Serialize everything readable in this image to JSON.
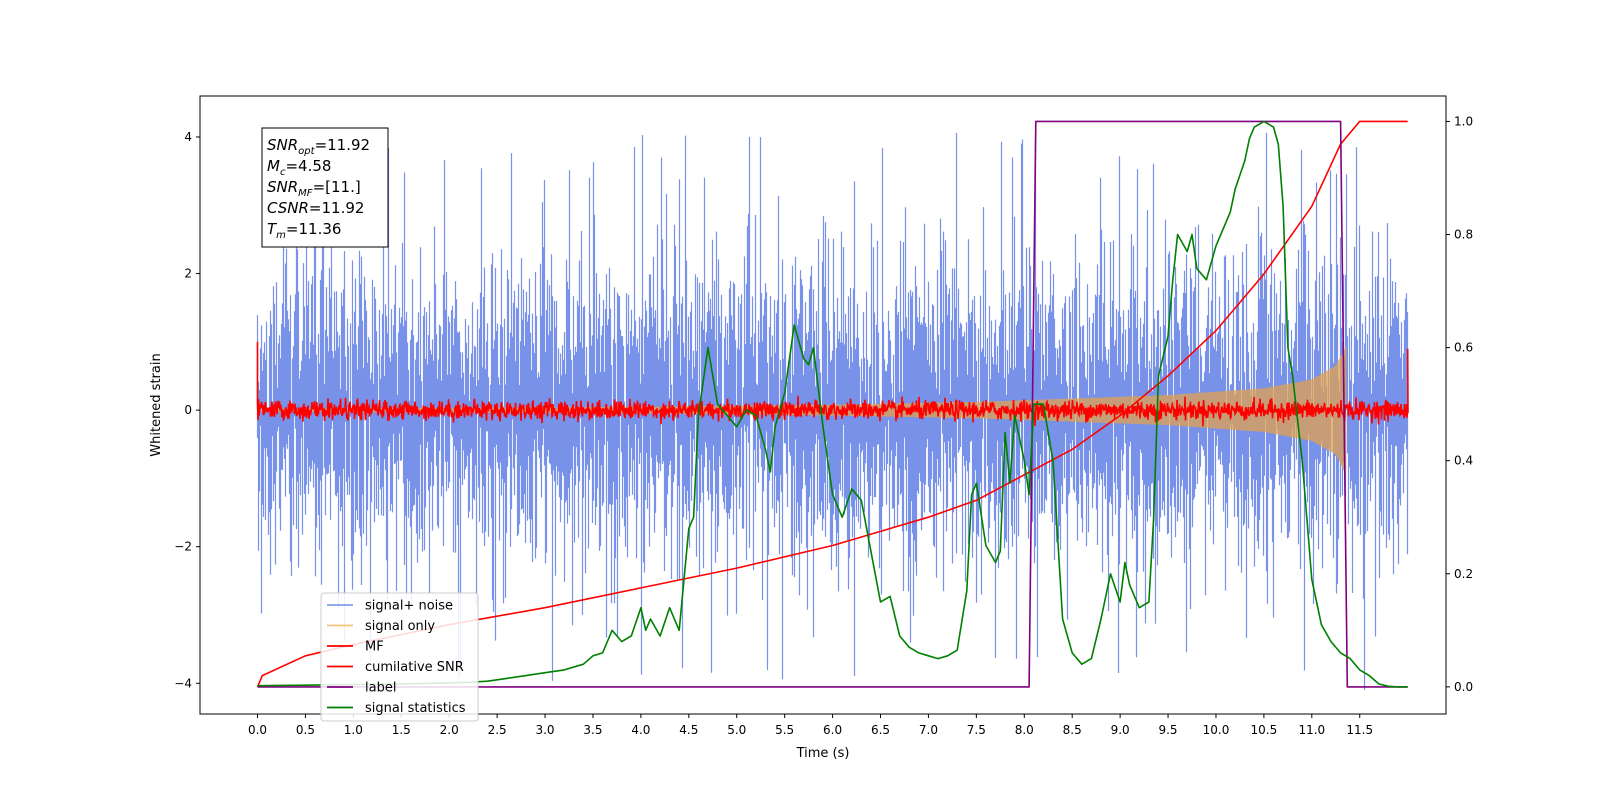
{
  "chart_data": {
    "type": "line",
    "title": "",
    "xlabel": "Time (s)",
    "ylabel": "Whitened strain",
    "xlim": [
      -0.6,
      12.4
    ],
    "ylim": [
      -4.45,
      4.6
    ],
    "y2lim": [
      -0.048,
      1.045
    ],
    "x_ticks": [
      "0.0",
      "0.5",
      "1.0",
      "1.5",
      "2.0",
      "2.5",
      "3.0",
      "3.5",
      "4.0",
      "4.5",
      "5.0",
      "5.5",
      "6.0",
      "6.5",
      "7.0",
      "7.5",
      "8.0",
      "8.5",
      "9.0",
      "9.5",
      "10.0",
      "10.5",
      "11.0",
      "11.5"
    ],
    "y_ticks": [
      "−4",
      "−2",
      "0",
      "2",
      "4"
    ],
    "y2_ticks": [
      "0.0",
      "0.2",
      "0.4",
      "0.6",
      "0.8",
      "1.0"
    ],
    "grid": false,
    "legend_position": "lower-left",
    "annotation": {
      "lines": [
        {
          "base": "SNR",
          "sub": "opt",
          "value": "=11.92"
        },
        {
          "base": "M",
          "sub": "c",
          "value": "=4.58"
        },
        {
          "base": "SNR",
          "sub": "MF",
          "value": "=[11.]"
        },
        {
          "base": "CSNR",
          "sub": "",
          "value": "=11.92"
        },
        {
          "base": "T",
          "sub": "m",
          "value": "=11.36"
        }
      ]
    },
    "series": [
      {
        "name": "signal+ noise",
        "color": "#7792e8",
        "axis": "left",
        "t_range": [
          0,
          12.0
        ],
        "noise_sigma": 1.0,
        "peak_abs": 4.1
      },
      {
        "name": "signal only",
        "color": "#f5c16c",
        "axis": "left",
        "t_range": [
          0,
          11.36
        ],
        "envelope_t": [
          0,
          4.0,
          6.0,
          7.5,
          8.5,
          9.5,
          10.5,
          11.0,
          11.25,
          11.36
        ],
        "envelope_amp": [
          0.02,
          0.05,
          0.08,
          0.12,
          0.17,
          0.22,
          0.32,
          0.45,
          0.65,
          0.95
        ]
      },
      {
        "name": "MF",
        "color": "#ff0000",
        "axis": "left",
        "t_range": [
          0,
          12.0
        ],
        "noise_sigma": 0.07,
        "start_value": 1.0,
        "end_value": 0.9
      },
      {
        "name": "cumilative SNR",
        "color": "#ff0000",
        "axis": "right",
        "x": [
          0,
          0.05,
          0.5,
          1.0,
          2.0,
          3.0,
          4.0,
          5.0,
          6.0,
          7.0,
          7.5,
          8.0,
          8.5,
          9.0,
          9.5,
          10.0,
          10.5,
          11.0,
          11.3,
          11.5,
          12.0
        ],
        "y": [
          0.0,
          0.02,
          0.055,
          0.075,
          0.11,
          0.14,
          0.175,
          0.21,
          0.25,
          0.3,
          0.33,
          0.375,
          0.42,
          0.48,
          0.55,
          0.63,
          0.73,
          0.85,
          0.96,
          1.0,
          1.0
        ]
      },
      {
        "name": "label",
        "color": "#800080",
        "axis": "right",
        "x": [
          0,
          8.05,
          8.12,
          11.3,
          11.37,
          12.0
        ],
        "y": [
          0,
          0,
          1,
          1,
          0,
          0
        ]
      },
      {
        "name": "signal statistics",
        "color": "#008000",
        "axis": "right",
        "x": [
          0.0,
          0.5,
          1.0,
          1.5,
          2.0,
          2.2,
          2.4,
          2.6,
          2.8,
          3.0,
          3.2,
          3.4,
          3.5,
          3.6,
          3.7,
          3.8,
          3.9,
          4.0,
          4.05,
          4.1,
          4.2,
          4.3,
          4.4,
          4.5,
          4.55,
          4.6,
          4.7,
          4.8,
          4.9,
          5.0,
          5.1,
          5.2,
          5.3,
          5.35,
          5.4,
          5.5,
          5.6,
          5.7,
          5.75,
          5.8,
          5.9,
          6.0,
          6.1,
          6.2,
          6.3,
          6.4,
          6.5,
          6.6,
          6.7,
          6.8,
          6.9,
          7.0,
          7.1,
          7.2,
          7.3,
          7.4,
          7.45,
          7.5,
          7.6,
          7.7,
          7.75,
          7.8,
          7.85,
          7.9,
          8.0,
          8.05,
          8.1,
          8.2,
          8.3,
          8.4,
          8.5,
          8.6,
          8.7,
          8.8,
          8.9,
          9.0,
          9.05,
          9.1,
          9.2,
          9.3,
          9.35,
          9.4,
          9.5,
          9.55,
          9.6,
          9.7,
          9.75,
          9.8,
          9.9,
          10.0,
          10.1,
          10.15,
          10.2,
          10.3,
          10.35,
          10.4,
          10.45,
          10.5,
          10.6,
          10.65,
          10.7,
          10.75,
          10.8,
          10.9,
          11.0,
          11.1,
          11.2,
          11.3,
          11.4,
          11.5,
          11.6,
          11.7,
          11.8,
          11.9,
          12.0
        ],
        "y": [
          0.002,
          0.003,
          0.004,
          0.005,
          0.007,
          0.008,
          0.01,
          0.015,
          0.02,
          0.025,
          0.03,
          0.04,
          0.055,
          0.06,
          0.1,
          0.08,
          0.09,
          0.14,
          0.1,
          0.12,
          0.09,
          0.14,
          0.1,
          0.28,
          0.3,
          0.48,
          0.6,
          0.5,
          0.48,
          0.46,
          0.49,
          0.48,
          0.42,
          0.38,
          0.46,
          0.52,
          0.64,
          0.58,
          0.57,
          0.6,
          0.46,
          0.34,
          0.3,
          0.35,
          0.33,
          0.24,
          0.15,
          0.16,
          0.09,
          0.07,
          0.06,
          0.055,
          0.05,
          0.055,
          0.065,
          0.17,
          0.34,
          0.36,
          0.25,
          0.22,
          0.24,
          0.45,
          0.36,
          0.48,
          0.4,
          0.34,
          0.5,
          0.5,
          0.4,
          0.12,
          0.06,
          0.04,
          0.05,
          0.12,
          0.2,
          0.15,
          0.22,
          0.18,
          0.14,
          0.15,
          0.3,
          0.55,
          0.62,
          0.72,
          0.8,
          0.77,
          0.8,
          0.74,
          0.72,
          0.78,
          0.82,
          0.84,
          0.88,
          0.93,
          0.97,
          0.99,
          0.995,
          1.0,
          0.99,
          0.96,
          0.85,
          0.6,
          0.55,
          0.4,
          0.19,
          0.11,
          0.08,
          0.06,
          0.05,
          0.03,
          0.02,
          0.005,
          0.001,
          0.0,
          0.0
        ]
      }
    ]
  }
}
